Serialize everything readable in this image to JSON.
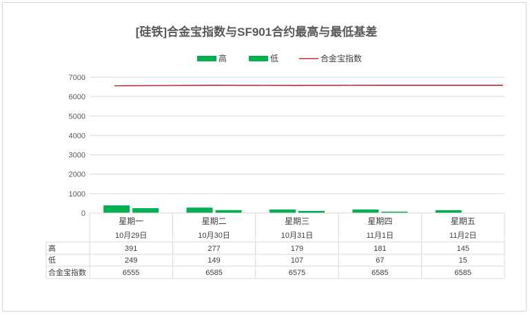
{
  "chart_data": {
    "type": "bar",
    "title": "[硅铁]合金宝指数与SF901合约最高与最低基差",
    "categories": [
      {
        "day": "星期一",
        "date": "10月29日"
      },
      {
        "day": "星期二",
        "date": "10月30日"
      },
      {
        "day": "星期三",
        "date": "10月31日"
      },
      {
        "day": "星期四",
        "date": "11月1日"
      },
      {
        "day": "星期五",
        "date": "11月2日"
      }
    ],
    "series": [
      {
        "name": "高",
        "type": "bar",
        "color": "#00b050",
        "values": [
          391,
          277,
          179,
          181,
          145
        ]
      },
      {
        "name": "低",
        "type": "bar",
        "color": "#00b050",
        "values": [
          249,
          149,
          107,
          67,
          15
        ]
      },
      {
        "name": "合金宝指数",
        "type": "line",
        "color": "#c00000",
        "values": [
          6555,
          6585,
          6575,
          6585,
          6585
        ]
      }
    ],
    "ylim": [
      0,
      7000
    ],
    "yticks": [
      0,
      1000,
      2000,
      3000,
      4000,
      5000,
      6000,
      7000
    ],
    "grid": true,
    "legend_position": "top",
    "data_table": true
  }
}
